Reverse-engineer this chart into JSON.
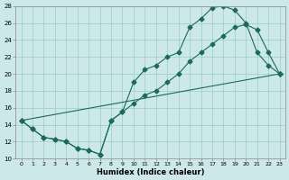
{
  "xlabel": "Humidex (Indice chaleur)",
  "xlim": [
    -0.5,
    23.5
  ],
  "ylim": [
    10,
    28
  ],
  "xticks": [
    0,
    1,
    2,
    3,
    4,
    5,
    6,
    7,
    8,
    9,
    10,
    11,
    12,
    13,
    14,
    15,
    16,
    17,
    18,
    19,
    20,
    21,
    22,
    23
  ],
  "yticks": [
    10,
    12,
    14,
    16,
    18,
    20,
    22,
    24,
    26,
    28
  ],
  "bg_color": "#cce8e8",
  "line_color": "#1a6b5a",
  "grid_color": "#99cccc",
  "line1_x": [
    0,
    1,
    2,
    3,
    4,
    5,
    6,
    7,
    8,
    9,
    10,
    11,
    12,
    13,
    14,
    15,
    16,
    17,
    18,
    19,
    20,
    21,
    22,
    23
  ],
  "line1_y": [
    14.5,
    13.5,
    12.5,
    12.3,
    12.0,
    11.2,
    11.0,
    10.5,
    14.5,
    15.5,
    19.0,
    20.5,
    21.0,
    22.0,
    22.5,
    25.5,
    26.5,
    27.8,
    28.0,
    27.5,
    26.0,
    22.5,
    21.0,
    20.0
  ],
  "line2_x": [
    0,
    1,
    2,
    3,
    4,
    5,
    6,
    7,
    8,
    9,
    10,
    11,
    12,
    13,
    14,
    15,
    16,
    17,
    18,
    19,
    20,
    21,
    22,
    23
  ],
  "line2_y": [
    14.5,
    13.5,
    12.5,
    12.3,
    12.0,
    11.2,
    11.0,
    10.5,
    14.5,
    15.5,
    16.5,
    17.5,
    18.0,
    19.0,
    20.0,
    21.5,
    22.5,
    23.5,
    24.5,
    25.5,
    25.8,
    25.2,
    22.5,
    20.0
  ],
  "line3_x": [
    0,
    23
  ],
  "line3_y": [
    14.5,
    20.0
  ]
}
